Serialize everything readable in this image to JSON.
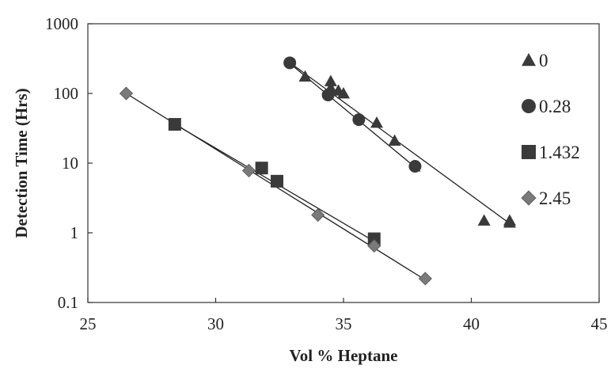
{
  "chart_data": {
    "type": "scatter",
    "title": "",
    "xlabel": "Vol % Heptane",
    "ylabel": "Detection Time (Hrs)",
    "xlim": [
      25,
      45
    ],
    "ylim": [
      0.1,
      1000
    ],
    "yscale": "log",
    "grid": false,
    "legend_position": "right",
    "x_ticks": [
      "25",
      "30",
      "35",
      "40",
      "45"
    ],
    "y_ticks": [
      "0.1",
      "1",
      "10",
      "100",
      "1000"
    ],
    "series": [
      {
        "name": "0",
        "marker": "triangle",
        "color": "#3a3a3a",
        "x": [
          33.5,
          34.5,
          34.5,
          34.8,
          35.0,
          36.3,
          37.0,
          40.5,
          41.5,
          41.5
        ],
        "y": [
          175,
          150,
          120,
          110,
          100,
          38,
          21,
          1.5,
          1.5,
          1.4
        ],
        "fit": [
          [
            33.1,
            245
          ],
          [
            41.6,
            1.28
          ]
        ]
      },
      {
        "name": "0.28",
        "marker": "circle",
        "color": "#3a3a3a",
        "x": [
          32.9,
          34.4,
          35.6,
          37.8
        ],
        "y": [
          275,
          95,
          42,
          9
        ],
        "fit": [
          [
            32.9,
            270
          ],
          [
            38.0,
            7.6
          ]
        ]
      },
      {
        "name": "1.432",
        "marker": "square",
        "color": "#3a3a3a",
        "x": [
          28.4,
          31.8,
          32.4,
          36.2
        ],
        "y": [
          36,
          8.5,
          5.5,
          0.82
        ],
        "fit": [
          [
            28.2,
            40
          ],
          [
            36.3,
            0.72
          ]
        ]
      },
      {
        "name": "2.45",
        "marker": "diamond",
        "color": "#7a7a7a",
        "x": [
          26.5,
          31.3,
          34.0,
          36.2,
          38.2
        ],
        "y": [
          100,
          7.8,
          1.8,
          0.65,
          0.22
        ],
        "fit": [
          [
            26.5,
            100
          ],
          [
            38.3,
            0.2
          ]
        ]
      }
    ]
  }
}
